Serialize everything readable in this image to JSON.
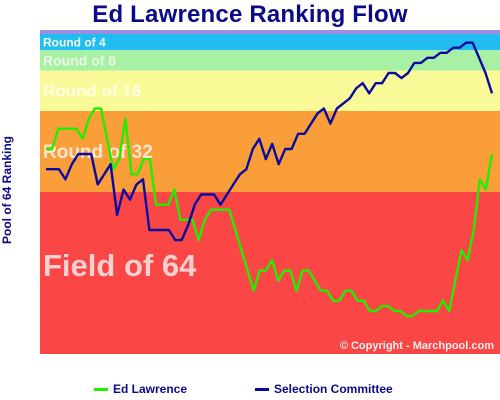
{
  "title": "Ed Lawrence Ranking Flow",
  "ylabel": "Pool of 64 Ranking",
  "copyright": "© Copyright - Marchpool.com",
  "chart_data": {
    "type": "line",
    "title": "Ed Lawrence Ranking Flow",
    "ylabel": "Pool of 64 Ranking",
    "xlabel": "",
    "ylim": [
      1,
      64
    ],
    "y_inverted": true,
    "grid": false,
    "legend_position": "bottom",
    "bands": [
      {
        "label": "Round of 4",
        "from": 1,
        "to": 4,
        "color": "#21bdf0"
      },
      {
        "label": "Round of 8",
        "from": 5,
        "to": 8,
        "color": "#a8f0a4"
      },
      {
        "label": "Round of 16",
        "from": 9,
        "to": 16,
        "color": "#fafa98"
      },
      {
        "label": "Round of 32",
        "from": 17,
        "to": 32,
        "color": "#fa9e3a"
      },
      {
        "label": "Field of 64",
        "from": 33,
        "to": 64,
        "color": "#fb4646"
      }
    ],
    "series": [
      {
        "name": "Ed Lawrence",
        "color": "#22ee00",
        "values": [
          24,
          24,
          20,
          20,
          20,
          20,
          22,
          18,
          16,
          16,
          22,
          28,
          26,
          18,
          29,
          29,
          26,
          26,
          35,
          35,
          35,
          32,
          38,
          38,
          38,
          42,
          38,
          36,
          36,
          36,
          36,
          40,
          44,
          48,
          52,
          48,
          48,
          46,
          50,
          48,
          48,
          52,
          48,
          48,
          50,
          52,
          52,
          54,
          54,
          52,
          52,
          54,
          54,
          56,
          56,
          55,
          55,
          56,
          56,
          57,
          57,
          56,
          56,
          56,
          56,
          54,
          56,
          50,
          44,
          46,
          40,
          30,
          32,
          25
        ]
      },
      {
        "name": "Selection Committee",
        "color": "#0a0aa0",
        "values": [
          28,
          28,
          28,
          30,
          27,
          25,
          25,
          25,
          31,
          29,
          27,
          37,
          32,
          34,
          31,
          30,
          40,
          40,
          40,
          40,
          42,
          42,
          39,
          35,
          33,
          33,
          33,
          35,
          33,
          31,
          29,
          28,
          24,
          22,
          26,
          23,
          27,
          24,
          24,
          21,
          21,
          19,
          17,
          16,
          19,
          16,
          15,
          14,
          12,
          11,
          13,
          11,
          11,
          9,
          9,
          10,
          9,
          7,
          7,
          6,
          6,
          5,
          5,
          4,
          4,
          3,
          3,
          6,
          9,
          13
        ]
      }
    ]
  }
}
